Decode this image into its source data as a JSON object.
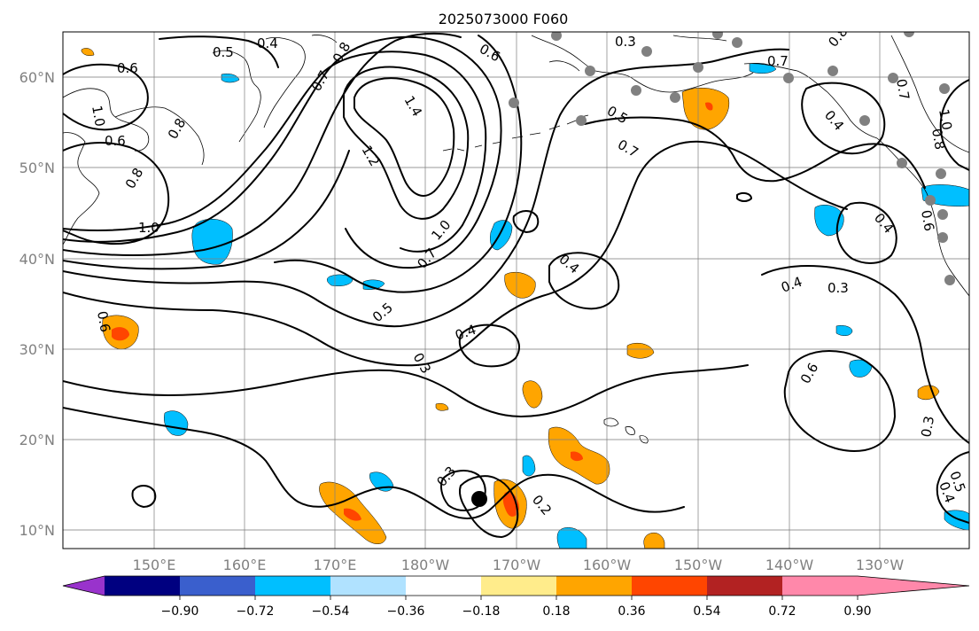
{
  "title": "2025073000 F060",
  "lon_ticks": [
    "150°E",
    "160°E",
    "170°E",
    "180°W",
    "170°W",
    "160°W",
    "150°W",
    "140°W",
    "130°W"
  ],
  "lat_ticks": [
    "60°N",
    "50°N",
    "40°N",
    "30°N",
    "20°N",
    "10°N"
  ],
  "colorbar": {
    "tick_labels": [
      "−0.90",
      "−0.72",
      "−0.54",
      "−0.36",
      "−0.18",
      "0.18",
      "0.36",
      "0.54",
      "0.72",
      "0.90"
    ],
    "colors": [
      "#9933cc",
      "#000080",
      "#3a5fcd",
      "#00bfff",
      "#b0e2ff",
      "#ffffff",
      "#ffec8b",
      "#ffa500",
      "#ff4500",
      "#b22222",
      "#ff88aa"
    ]
  },
  "contour_labels": [
    "0.5",
    "0.4",
    "0.6",
    "1.0",
    "0.6",
    "0.8",
    "0.8",
    "1.0",
    "1.2",
    "1.4",
    "0.7",
    "0.8",
    "0.6",
    "1.0",
    "0.7",
    "0.5",
    "0.3",
    "0.4",
    "0.4",
    "0.3",
    "0.2",
    "0.5",
    "0.7",
    "0.3",
    "0.7",
    "0.8",
    "0.4",
    "0.4",
    "0.3",
    "0.6",
    "0.3",
    "0.5",
    "0.4",
    "1.0",
    "0.8",
    "0.6",
    "0.6",
    "0.4",
    "0.7"
  ],
  "map_elements": {
    "stations": "gray station dots",
    "cyclone": "black filled marker"
  }
}
